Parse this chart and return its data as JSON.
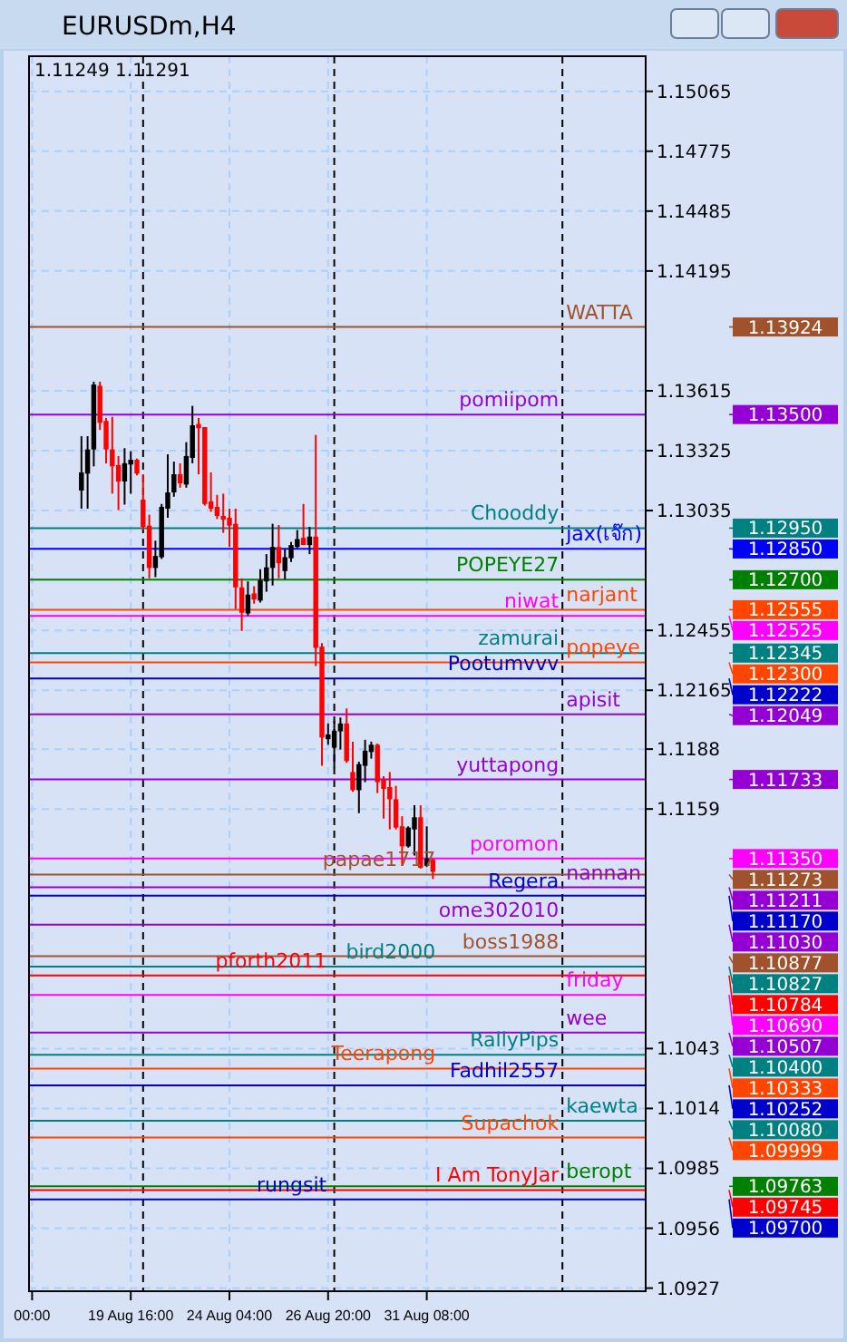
{
  "chart_data": {
    "type": "candlestick",
    "title": "EURUSDm,H4",
    "annotations": [
      "1.11249 1.11291",
      "1.13924",
      "1.13500",
      "1.12950",
      "1.12850",
      "1.12700",
      "1.12555",
      "1.12525",
      "1.12345",
      "1.12300",
      "1.12222",
      "1.12049",
      "1.11733",
      "1.11350",
      "1.11273",
      "1.11211",
      "1.11170",
      "1.11030",
      "1.10877",
      "1.10827",
      "1.10784",
      "1.10690",
      "1.10507",
      "1.10400",
      "1.10333",
      "1.10252",
      "1.10080",
      "1.09999",
      "1.09763",
      "1.09745",
      "1.09700"
    ],
    "categories": [
      "00:00",
      null,
      null,
      null,
      null,
      null,
      null,
      null,
      null,
      null,
      null,
      null,
      null,
      null,
      null,
      null,
      "19 Aug 16:00",
      null,
      null,
      null,
      null,
      null,
      null,
      null,
      null,
      null,
      null,
      null,
      null,
      null,
      null,
      null,
      "24 Aug 04:00",
      null,
      null,
      null,
      null,
      null,
      null,
      null,
      null,
      null,
      null,
      null,
      null,
      null,
      null,
      null,
      "26 Aug 20:00",
      null,
      null,
      null,
      null,
      null,
      null,
      null,
      null,
      null,
      null,
      null,
      null,
      null,
      null,
      null,
      "31 Aug 08:00",
      null,
      null,
      null,
      null,
      null,
      null,
      null,
      null,
      null,
      null,
      null,
      null,
      null,
      null,
      null,
      null,
      null,
      null,
      null,
      null,
      null,
      null,
      null,
      null,
      null,
      null,
      null,
      null,
      null,
      null,
      null,
      null,
      null,
      null,
      null
    ],
    "ohlc": [
      null,
      null,
      null,
      null,
      null,
      null,
      null,
      null,
      [
        1.13132,
        1.13395,
        1.13044,
        1.1322
      ],
      [
        1.13214,
        1.13395,
        1.13044,
        1.13331
      ],
      [
        1.13331,
        1.13659,
        1.13249,
        1.13645
      ],
      [
        1.13639,
        1.13659,
        1.13425,
        1.1346
      ],
      [
        1.13469,
        1.13483,
        1.13264,
        1.13331
      ],
      [
        1.13331,
        1.13489,
        1.13117,
        1.13249
      ],
      [
        1.13255,
        1.13299,
        1.13038,
        1.13176
      ],
      [
        1.13176,
        1.13337,
        1.13064,
        1.13264
      ],
      [
        1.13258,
        1.13322,
        1.13117,
        1.13281
      ],
      [
        1.13281,
        1.13287,
        1.13205,
        1.13214
      ],
      [
        1.13088,
        1.13211,
        1.12941,
        1.12956
      ],
      [
        1.12962,
        1.13015,
        1.12707,
        1.12757
      ],
      [
        1.12757,
        1.12889,
        1.12713,
        1.12815
      ],
      [
        1.12809,
        1.13067,
        1.12801,
        1.13053
      ],
      [
        1.13044,
        1.13308,
        1.13,
        1.13123
      ],
      [
        1.13123,
        1.13272,
        1.13102,
        1.13211
      ],
      [
        1.13211,
        1.13264,
        1.13146,
        1.13167
      ],
      [
        1.13161,
        1.13366,
        1.13146,
        1.13299
      ],
      [
        1.1329,
        1.13542,
        1.13264,
        1.13448
      ],
      [
        1.13454,
        1.13483,
        1.13211,
        1.13434
      ],
      [
        1.13439,
        1.13439,
        1.13059,
        1.13067
      ],
      [
        1.13079,
        1.1322,
        1.13029,
        1.13044
      ],
      [
        1.13053,
        1.13111,
        1.12994,
        1.13009
      ],
      [
        1.13009,
        1.13117,
        1.12927,
        1.12991
      ],
      [
        1.13,
        1.13044,
        1.12859,
        1.12962
      ],
      [
        1.12971,
        1.13044,
        1.12558,
        1.12663
      ],
      [
        1.12663,
        1.12707,
        1.12452,
        1.1254
      ],
      [
        1.12537,
        1.12692,
        1.12525,
        1.12628
      ],
      [
        1.12634,
        1.12669,
        1.12584,
        1.12604
      ],
      [
        1.12599,
        1.12751,
        1.1259,
        1.12698
      ],
      [
        1.12692,
        1.12824,
        1.12642,
        1.1276
      ],
      [
        1.12757,
        1.12971,
        1.12672,
        1.12859
      ],
      [
        1.12859,
        1.12965,
        1.12707,
        1.1278
      ],
      [
        1.12742,
        1.12851,
        1.12701,
        1.12809
      ],
      [
        1.12804,
        1.12883,
        1.12786,
        1.12868
      ],
      [
        1.12859,
        1.12941,
        1.12853,
        1.12897
      ],
      [
        1.12903,
        1.13067,
        1.12868,
        1.12868
      ],
      [
        1.12868,
        1.12956,
        1.12824,
        1.12909
      ],
      [
        1.12909,
        1.13401,
        1.12282,
        1.1237
      ],
      [
        1.12376,
        1.12393,
        1.11799,
        1.11936
      ],
      [
        1.11928,
        1.12004,
        1.11901,
        1.11951
      ],
      [
        1.11887,
        1.12018,
        1.1179,
        1.11969
      ],
      [
        1.11966,
        1.12033,
        1.11878,
        1.12004
      ],
      [
        1.12004,
        1.12077,
        1.11813,
        1.11822
      ],
      [
        1.11769,
        1.11916,
        1.11673,
        1.11681
      ],
      [
        1.11681,
        1.11819,
        1.1157,
        1.11807
      ],
      [
        1.11799,
        1.11925,
        1.1172,
        1.11872
      ],
      [
        1.11866,
        1.11916,
        1.11834,
        1.11901
      ],
      [
        1.11901,
        1.11907,
        1.11667,
        1.1172
      ],
      [
        1.11731,
        1.11749,
        1.11544,
        1.11687
      ],
      [
        1.11696,
        1.11769,
        1.11491,
        1.11637
      ],
      [
        1.11637,
        1.11702,
        1.11491,
        1.115
      ],
      [
        1.11506,
        1.11555,
        1.11315,
        1.11409
      ],
      [
        1.11409,
        1.11506,
        1.11403,
        1.115
      ],
      [
        1.11491,
        1.11608,
        1.11365,
        1.1155
      ],
      [
        1.1155,
        1.11608,
        1.11301,
        1.11306
      ],
      [
        1.11315,
        1.11506,
        1.11309,
        1.1135
      ],
      [
        1.11344,
        1.1135,
        1.11251,
        1.11286
      ],
      null,
      null,
      null,
      null,
      null,
      null,
      null,
      null,
      null,
      null,
      null,
      null,
      null,
      null,
      null,
      null,
      null,
      null,
      null,
      null,
      null,
      null,
      null,
      null,
      null,
      null,
      null,
      null,
      null,
      null,
      null,
      null,
      null,
      null
    ],
    "colors": [
      null,
      null,
      null,
      null,
      null,
      null,
      null,
      null,
      "#000000",
      "#000000",
      "#000000",
      "#ff0000",
      "#ff0000",
      "#ff0000",
      "#ff0000",
      "#000000",
      "#000000",
      "#ff0000",
      "#ff0000",
      "#ff0000",
      "#000000",
      "#000000",
      "#000000",
      "#000000",
      "#ff0000",
      "#000000",
      "#000000",
      "#ff0000",
      "#ff0000",
      "#ff0000",
      "#ff0000",
      "#ff0000",
      "#ff0000",
      "#ff0000",
      "#ff0000",
      "#000000",
      "#ff0000",
      "#000000",
      "#000000",
      "#000000",
      "#ff0000",
      "#000000",
      "#000000",
      "#000000",
      "#ff0000",
      "#000000",
      "#ff0000",
      "#ff0000",
      "#000000",
      "#000000",
      "#000000",
      "#ff0000",
      "#ff0000",
      "#000000",
      "#000000",
      "#000000",
      "#ff0000",
      "#ff0000",
      "#ff0000",
      "#ff0000",
      "#ff0000",
      "#000000",
      "#000000",
      "#ff0000",
      "#000000",
      "#ff0000",
      null,
      null,
      null,
      null,
      null,
      null,
      null,
      null,
      null,
      null,
      null,
      null,
      null,
      null,
      null,
      null,
      null,
      null,
      null,
      null,
      null,
      null,
      null,
      null,
      null,
      null,
      null,
      null,
      null,
      null,
      null,
      null,
      null,
      null
    ],
    "ylim": [
      1.09255,
      1.15235
    ],
    "yticks": [
      1.15065,
      1.14775,
      1.14485,
      1.14195,
      1.13615,
      1.13325,
      1.13035,
      1.12455,
      1.12165,
      1.1188,
      1.1159,
      1.1043,
      1.1014,
      1.0985,
      1.0956,
      1.0927
    ],
    "grid": true,
    "ref_lines": [
      {
        "axis": "y",
        "value": 1.13924,
        "label": "WATTA",
        "color": "#a0522d"
      },
      {
        "axis": "y",
        "value": 1.135,
        "label": "pomiipom",
        "color": "#9400d3"
      },
      {
        "axis": "y",
        "value": 1.1295,
        "label": "Chooddy",
        "color": "#008080"
      },
      {
        "axis": "y",
        "value": 1.1285,
        "label": "jax(เจ๊ก)",
        "color": "#0000ff"
      },
      {
        "axis": "y",
        "value": 1.127,
        "label": "POPEYE27",
        "color": "#008000"
      },
      {
        "axis": "y",
        "value": 1.12555,
        "label": "narjant",
        "color": "#ff4500"
      },
      {
        "axis": "y",
        "value": 1.12525,
        "label": "niwat",
        "color": "#ff00ff"
      },
      {
        "axis": "y",
        "value": 1.12345,
        "label": "zamurai",
        "color": "#008080"
      },
      {
        "axis": "y",
        "value": 1.123,
        "label": "popeye",
        "color": "#ff4500"
      },
      {
        "axis": "y",
        "value": 1.12222,
        "label": "Pootumvvv",
        "color": "#0000cd"
      },
      {
        "axis": "y",
        "value": 1.12049,
        "label": "apisit",
        "color": "#9400d3"
      },
      {
        "axis": "y",
        "value": 1.11733,
        "label": "yuttapong",
        "color": "#9400d3"
      },
      {
        "axis": "y",
        "value": 1.1135,
        "label": "poromon",
        "color": "#ff00ff"
      },
      {
        "axis": "y",
        "value": 1.11273,
        "label": "papae1717",
        "color": "#a0522d"
      },
      {
        "axis": "y",
        "value": 1.11211,
        "label": "nannan",
        "color": "#9400d3"
      },
      {
        "axis": "y",
        "value": 1.1117,
        "label": "Regera",
        "color": "#0000cd"
      },
      {
        "axis": "y",
        "value": 1.1103,
        "label": "ome302010",
        "color": "#9400d3"
      },
      {
        "axis": "y",
        "value": 1.10877,
        "label": "boss1988",
        "color": "#a0522d"
      },
      {
        "axis": "y",
        "value": 1.10827,
        "label": "bird2000",
        "color": "#008080"
      },
      {
        "axis": "y",
        "value": 1.10784,
        "label": "pforth2011",
        "color": "#ff0000"
      },
      {
        "axis": "y",
        "value": 1.1069,
        "label": "friday",
        "color": "#ff00ff"
      },
      {
        "axis": "y",
        "value": 1.10507,
        "label": "wee",
        "color": "#9400d3"
      },
      {
        "axis": "y",
        "value": 1.104,
        "label": "RallyPips",
        "color": "#008080"
      },
      {
        "axis": "y",
        "value": 1.10333,
        "label": "Teerapong",
        "color": "#ff4500"
      },
      {
        "axis": "y",
        "value": 1.10252,
        "label": "Fadhil2557",
        "color": "#0000cd"
      },
      {
        "axis": "y",
        "value": 1.1008,
        "label": "kaewta",
        "color": "#008080"
      },
      {
        "axis": "y",
        "value": 1.09999,
        "label": "Supachok",
        "color": "#ff4500"
      },
      {
        "axis": "y",
        "value": 1.09763,
        "label": "beropt",
        "color": "#008000"
      },
      {
        "axis": "y",
        "value": 1.09745,
        "label": "I Am TonyJar",
        "color": "#ff0000"
      },
      {
        "axis": "y",
        "value": 1.097,
        "label": "rungsit",
        "color": "#0000cd"
      }
    ]
  }
}
